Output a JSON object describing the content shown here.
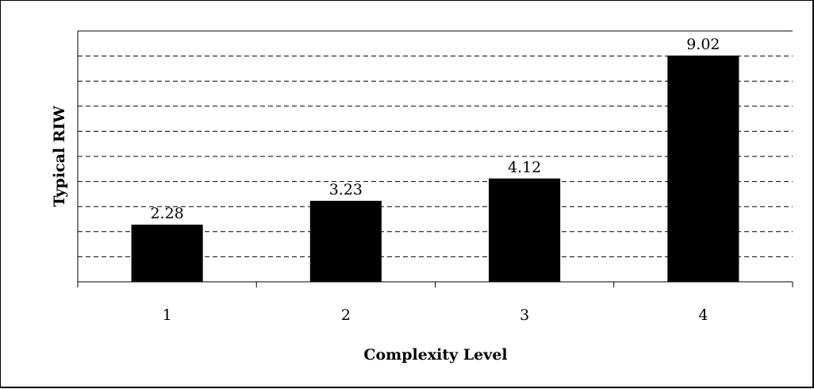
{
  "chart_data": {
    "type": "bar",
    "categories": [
      "1",
      "2",
      "3",
      "4"
    ],
    "values": [
      2.28,
      3.23,
      4.12,
      9.02
    ],
    "data_labels": [
      "2.28",
      "3.23",
      "4.12",
      "9.02"
    ],
    "title": "",
    "xlabel": "Complexity Level",
    "ylabel": "Typical RIW",
    "ylim": [
      0,
      10
    ],
    "grid": true,
    "legend": "none",
    "bar_color": "#000000",
    "gridline_color": "#000000"
  }
}
